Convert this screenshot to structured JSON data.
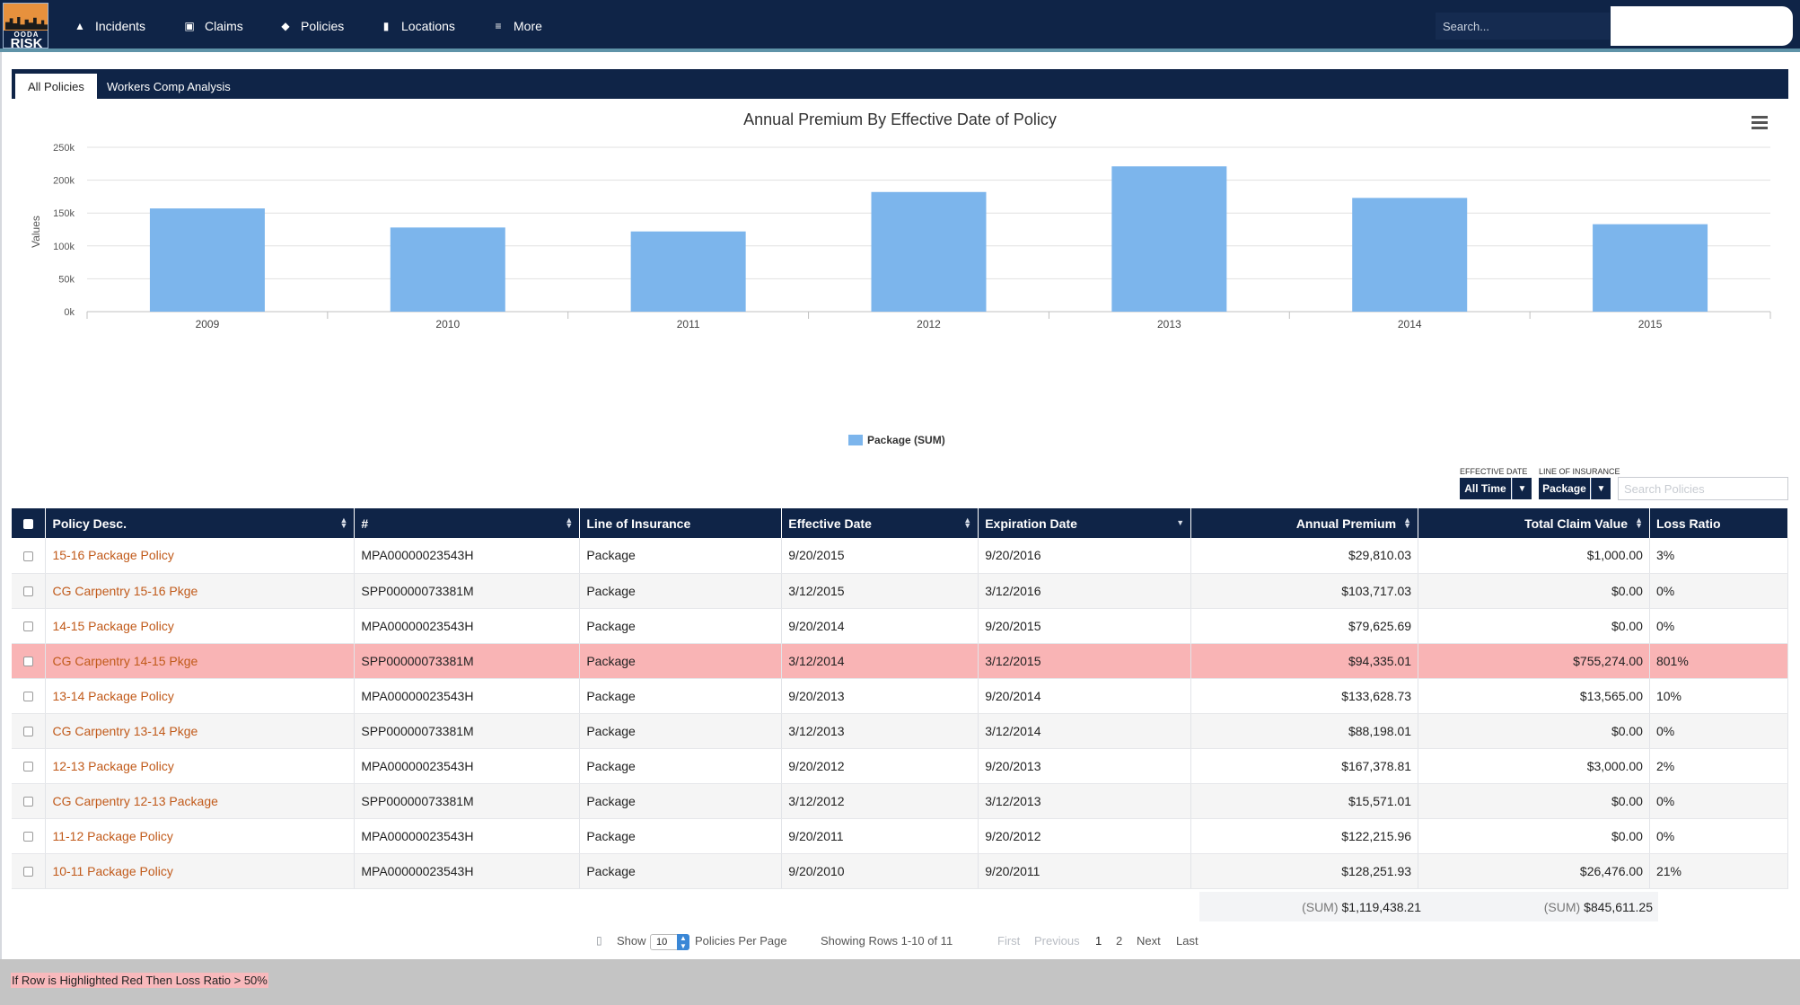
{
  "nav": {
    "logo_line1": "OODA",
    "logo_line2": "RISK",
    "items": [
      {
        "label": "Incidents",
        "icon": "warning-icon"
      },
      {
        "label": "Claims",
        "icon": "money-icon"
      },
      {
        "label": "Policies",
        "icon": "tag-icon"
      },
      {
        "label": "Locations",
        "icon": "building-icon"
      },
      {
        "label": "More",
        "icon": "menu-icon"
      }
    ],
    "search_placeholder": "Search..."
  },
  "tabs": [
    {
      "label": "All Policies",
      "active": true
    },
    {
      "label": "Workers Comp Analysis",
      "active": false
    }
  ],
  "chart_data": {
    "type": "bar",
    "title": "Annual Premium By Effective Date of Policy",
    "ylabel": "Values",
    "xlabel": "",
    "categories": [
      "2009",
      "2010",
      "2011",
      "2012",
      "2013",
      "2014",
      "2015"
    ],
    "series": [
      {
        "name": "Package (SUM)",
        "values": [
          157000,
          128000,
          122000,
          182000,
          221000,
          173000,
          133000
        ],
        "color": "#7cb5ec"
      }
    ],
    "ylim": [
      0,
      250000
    ],
    "yticks": [
      0,
      50000,
      100000,
      150000,
      200000,
      250000
    ],
    "ytick_labels": [
      "0k",
      "50k",
      "100k",
      "150k",
      "200k",
      "250k"
    ],
    "grid": true,
    "legend": "bottom-center"
  },
  "filters": {
    "effective_date_label": "EFFECTIVE DATE",
    "effective_date_value": "All Time",
    "line_label": "LINE OF INSURANCE",
    "line_value": "Package",
    "search_placeholder": "Search Policies"
  },
  "table": {
    "columns": [
      "Policy Desc.",
      "#",
      "Line of Insurance",
      "Effective Date",
      "Expiration Date",
      "Annual Premium",
      "Total Claim Value",
      "Loss Ratio"
    ],
    "rows": [
      {
        "desc": "15-16 Package Policy",
        "num": "MPA00000023543H",
        "line": "Package",
        "eff": "9/20/2015",
        "exp": "9/20/2016",
        "premium": "$29,810.03",
        "claim": "$1,000.00",
        "ratio": "3%",
        "highlight": false
      },
      {
        "desc": "CG Carpentry 15-16 Pkge",
        "num": "SPP00000073381M",
        "line": "Package",
        "eff": "3/12/2015",
        "exp": "3/12/2016",
        "premium": "$103,717.03",
        "claim": "$0.00",
        "ratio": "0%",
        "highlight": false
      },
      {
        "desc": "14-15 Package Policy",
        "num": "MPA00000023543H",
        "line": "Package",
        "eff": "9/20/2014",
        "exp": "9/20/2015",
        "premium": "$79,625.69",
        "claim": "$0.00",
        "ratio": "0%",
        "highlight": false
      },
      {
        "desc": "CG Carpentry 14-15 Pkge",
        "num": "SPP00000073381M",
        "line": "Package",
        "eff": "3/12/2014",
        "exp": "3/12/2015",
        "premium": "$94,335.01",
        "claim": "$755,274.00",
        "ratio": "801%",
        "highlight": true
      },
      {
        "desc": "13-14 Package Policy",
        "num": "MPA00000023543H",
        "line": "Package",
        "eff": "9/20/2013",
        "exp": "9/20/2014",
        "premium": "$133,628.73",
        "claim": "$13,565.00",
        "ratio": "10%",
        "highlight": false
      },
      {
        "desc": "CG Carpentry 13-14 Pkge",
        "num": "SPP00000073381M",
        "line": "Package",
        "eff": "3/12/2013",
        "exp": "3/12/2014",
        "premium": "$88,198.01",
        "claim": "$0.00",
        "ratio": "0%",
        "highlight": false
      },
      {
        "desc": "12-13 Package Policy",
        "num": "MPA00000023543H",
        "line": "Package",
        "eff": "9/20/2012",
        "exp": "9/20/2013",
        "premium": "$167,378.81",
        "claim": "$3,000.00",
        "ratio": "2%",
        "highlight": false
      },
      {
        "desc": "CG Carpentry 12-13 Package",
        "num": "SPP00000073381M",
        "line": "Package",
        "eff": "3/12/2012",
        "exp": "3/12/2013",
        "premium": "$15,571.01",
        "claim": "$0.00",
        "ratio": "0%",
        "highlight": false
      },
      {
        "desc": "11-12 Package Policy",
        "num": "MPA00000023543H",
        "line": "Package",
        "eff": "9/20/2011",
        "exp": "9/20/2012",
        "premium": "$122,215.96",
        "claim": "$0.00",
        "ratio": "0%",
        "highlight": false
      },
      {
        "desc": "10-11 Package Policy",
        "num": "MPA00000023543H",
        "line": "Package",
        "eff": "9/20/2010",
        "exp": "9/20/2011",
        "premium": "$128,251.93",
        "claim": "$26,476.00",
        "ratio": "21%",
        "highlight": false
      }
    ],
    "totals": {
      "sum_label": "(SUM)",
      "premium_sum": "$1,119,438.21",
      "claim_sum": "$845,611.25"
    }
  },
  "pager": {
    "show_label": "Show",
    "page_size": "10",
    "per_page_label": "Policies Per Page",
    "showing": "Showing Rows 1-10 of 11",
    "first": "First",
    "previous": "Previous",
    "page1": "1",
    "page2": "2",
    "next": "Next",
    "last": "Last"
  },
  "footer_note": "If Row is Highlighted Red Then Loss Ratio > 50%",
  "colors": {
    "navy": "#0f2447",
    "bar": "#7cb5ec",
    "highlight": "#f9b4b5",
    "link": "#c15a1a"
  }
}
